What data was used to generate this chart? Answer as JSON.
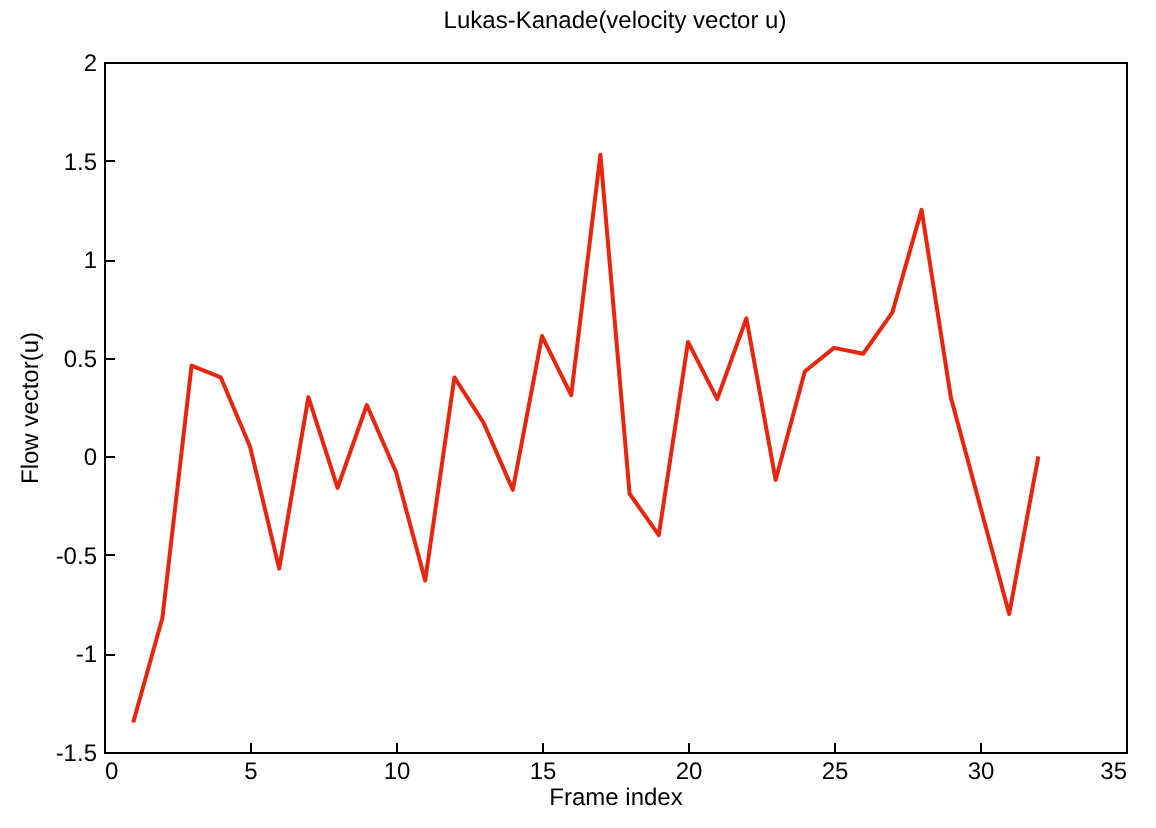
{
  "chart_data": {
    "type": "line",
    "title": "Lukas-Kanade(velocity vector u)",
    "xlabel": "Frame index",
    "ylabel": "Flow vector(u)",
    "x": [
      1,
      2,
      3,
      4,
      5,
      6,
      7,
      8,
      9,
      10,
      11,
      12,
      13,
      14,
      15,
      16,
      17,
      18,
      19,
      20,
      21,
      22,
      23,
      24,
      25,
      26,
      27,
      28,
      29,
      30,
      31,
      32
    ],
    "series": [
      {
        "color": "#e8260f",
        "values": [
          -1.35,
          -0.82,
          0.46,
          0.4,
          0.05,
          -0.57,
          0.3,
          -0.16,
          0.26,
          -0.08,
          -0.63,
          0.4,
          0.17,
          -0.17,
          0.61,
          0.31,
          1.53,
          -0.19,
          -0.4,
          0.58,
          0.29,
          0.7,
          -0.12,
          0.43,
          0.55,
          0.52,
          0.73,
          1.25,
          0.3,
          -0.25,
          -0.8,
          0
        ]
      }
    ],
    "xlim": [
      0,
      35
    ],
    "xticks": [
      0,
      5,
      10,
      15,
      20,
      25,
      30,
      35
    ],
    "ylim": [
      -1.5,
      2
    ],
    "yticks": [
      -1.5,
      -1,
      -0.5,
      0,
      0.5,
      1,
      1.5,
      2
    ],
    "grid": false,
    "legend": false,
    "marker": "none",
    "line_style": "solid"
  }
}
